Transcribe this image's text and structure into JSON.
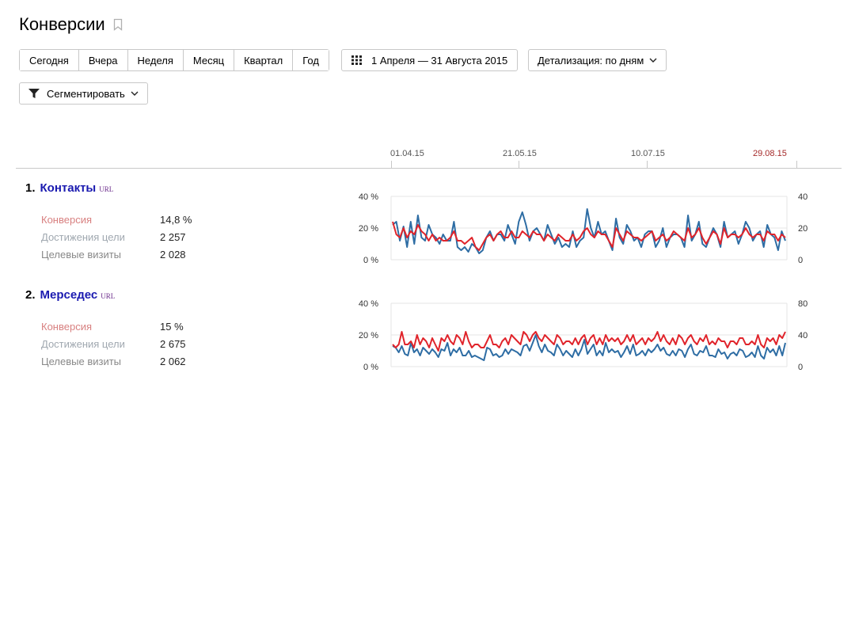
{
  "page": {
    "title": "Конверсии"
  },
  "toolbar": {
    "periods": [
      "Сегодня",
      "Вчера",
      "Неделя",
      "Месяц",
      "Квартал",
      "Год"
    ],
    "date_range": "1 Апреля — 31 Августа 2015",
    "detail": "Детализация: по дням",
    "segment": "Сегментировать"
  },
  "timeline": {
    "ticks": [
      "01.04.15",
      "21.05.15",
      "10.07.15",
      "29.08.15"
    ]
  },
  "goals": [
    {
      "number": "1.",
      "name": "Контакты",
      "tag": "URL",
      "metrics": [
        {
          "label": "Конверсия",
          "value": "14,8 %"
        },
        {
          "label": "Достижения цели",
          "value": "2 257"
        },
        {
          "label": "Целевые визиты",
          "value": "2 028"
        }
      ]
    },
    {
      "number": "2.",
      "name": "Мерседес",
      "tag": "URL",
      "metrics": [
        {
          "label": "Конверсия",
          "value": "15 %"
        },
        {
          "label": "Достижения цели",
          "value": "2 675"
        },
        {
          "label": "Целевые визиты",
          "value": "2 062"
        }
      ]
    }
  ],
  "chart_data": [
    {
      "type": "line",
      "left_axis": {
        "ticks": [
          "0 %",
          "20 %",
          "40 %"
        ],
        "ylim": [
          0,
          40
        ]
      },
      "right_axis": {
        "ticks": [
          "0",
          "20",
          "40"
        ],
        "ylim": [
          0,
          40
        ]
      },
      "series": [
        {
          "color": "#2e6da4",
          "axis": "right",
          "values": [
            22,
            24,
            12,
            21,
            8,
            24,
            10,
            28,
            14,
            12,
            22,
            16,
            14,
            10,
            16,
            12,
            12,
            24,
            8,
            6,
            8,
            5,
            10,
            8,
            4,
            6,
            14,
            18,
            12,
            16,
            16,
            12,
            22,
            16,
            10,
            24,
            30,
            22,
            12,
            18,
            20,
            16,
            12,
            22,
            16,
            10,
            14,
            8,
            10,
            8,
            18,
            8,
            12,
            14,
            32,
            20,
            14,
            24,
            16,
            18,
            12,
            6,
            26,
            14,
            10,
            22,
            18,
            12,
            14,
            8,
            16,
            18,
            18,
            8,
            12,
            20,
            8,
            14,
            16,
            16,
            14,
            8,
            28,
            12,
            16,
            24,
            10,
            8,
            14,
            20,
            16,
            8,
            24,
            14,
            16,
            18,
            10,
            16,
            24,
            20,
            12,
            16,
            18,
            8,
            22,
            16,
            14,
            6,
            18,
            12
          ]
        },
        {
          "color": "#e0242b",
          "axis": "left",
          "values": [
            24,
            16,
            14,
            20,
            14,
            18,
            16,
            22,
            18,
            16,
            12,
            16,
            12,
            14,
            12,
            12,
            14,
            18,
            12,
            12,
            10,
            12,
            14,
            8,
            6,
            10,
            14,
            16,
            12,
            16,
            18,
            14,
            14,
            18,
            14,
            14,
            18,
            16,
            14,
            18,
            16,
            16,
            12,
            16,
            14,
            12,
            16,
            14,
            12,
            12,
            16,
            12,
            14,
            18,
            20,
            16,
            14,
            18,
            16,
            16,
            12,
            8,
            20,
            16,
            12,
            18,
            16,
            14,
            14,
            12,
            14,
            16,
            18,
            12,
            14,
            16,
            12,
            14,
            18,
            16,
            14,
            12,
            20,
            14,
            16,
            20,
            14,
            10,
            14,
            18,
            16,
            10,
            20,
            14,
            16,
            16,
            14,
            16,
            20,
            16,
            14,
            16,
            16,
            12,
            18,
            16,
            16,
            12,
            16,
            14
          ]
        }
      ]
    },
    {
      "type": "line",
      "left_axis": {
        "ticks": [
          "0 %",
          "20 %",
          "40 %"
        ],
        "ylim": [
          0,
          40
        ]
      },
      "right_axis": {
        "ticks": [
          "0",
          "40",
          "80"
        ],
        "ylim": [
          0,
          80
        ]
      },
      "series": [
        {
          "color": "#2e6da4",
          "axis": "right",
          "values": [
            26,
            24,
            18,
            26,
            16,
            14,
            30,
            18,
            22,
            14,
            24,
            20,
            16,
            22,
            18,
            12,
            22,
            20,
            30,
            14,
            22,
            18,
            24,
            14,
            14,
            20,
            12,
            14,
            12,
            10,
            8,
            24,
            22,
            14,
            16,
            12,
            14,
            22,
            16,
            22,
            20,
            18,
            14,
            26,
            28,
            20,
            30,
            40,
            26,
            18,
            28,
            20,
            18,
            14,
            28,
            22,
            14,
            20,
            16,
            12,
            22,
            14,
            22,
            34,
            16,
            22,
            28,
            14,
            20,
            14,
            30,
            18,
            22,
            18,
            20,
            12,
            18,
            26,
            16,
            28,
            14,
            16,
            20,
            14,
            22,
            18,
            22,
            28,
            20,
            24,
            16,
            14,
            20,
            14,
            22,
            20,
            12,
            22,
            28,
            16,
            14,
            20,
            18,
            26,
            14,
            14,
            12,
            22,
            16,
            18,
            10,
            16,
            18,
            14,
            22,
            20,
            12,
            14,
            18,
            12,
            26,
            14,
            10,
            24,
            18,
            22,
            14,
            26,
            14,
            30
          ]
        },
        {
          "color": "#e0242b",
          "axis": "left",
          "values": [
            14,
            12,
            14,
            22,
            14,
            14,
            16,
            12,
            20,
            14,
            18,
            16,
            12,
            18,
            14,
            10,
            18,
            16,
            20,
            16,
            14,
            20,
            18,
            14,
            22,
            16,
            12,
            14,
            14,
            12,
            12,
            16,
            20,
            14,
            14,
            12,
            16,
            18,
            14,
            20,
            18,
            16,
            14,
            22,
            20,
            16,
            20,
            22,
            18,
            16,
            20,
            18,
            16,
            14,
            20,
            18,
            14,
            16,
            16,
            14,
            18,
            14,
            18,
            20,
            14,
            18,
            20,
            14,
            18,
            14,
            20,
            16,
            18,
            16,
            18,
            14,
            16,
            20,
            16,
            20,
            14,
            16,
            18,
            14,
            18,
            16,
            18,
            22,
            16,
            20,
            16,
            14,
            18,
            14,
            20,
            18,
            14,
            18,
            20,
            16,
            14,
            18,
            16,
            20,
            14,
            16,
            14,
            18,
            16,
            16,
            12,
            16,
            16,
            14,
            18,
            18,
            14,
            14,
            16,
            14,
            20,
            14,
            12,
            18,
            16,
            18,
            14,
            20,
            18,
            22
          ]
        }
      ]
    }
  ]
}
